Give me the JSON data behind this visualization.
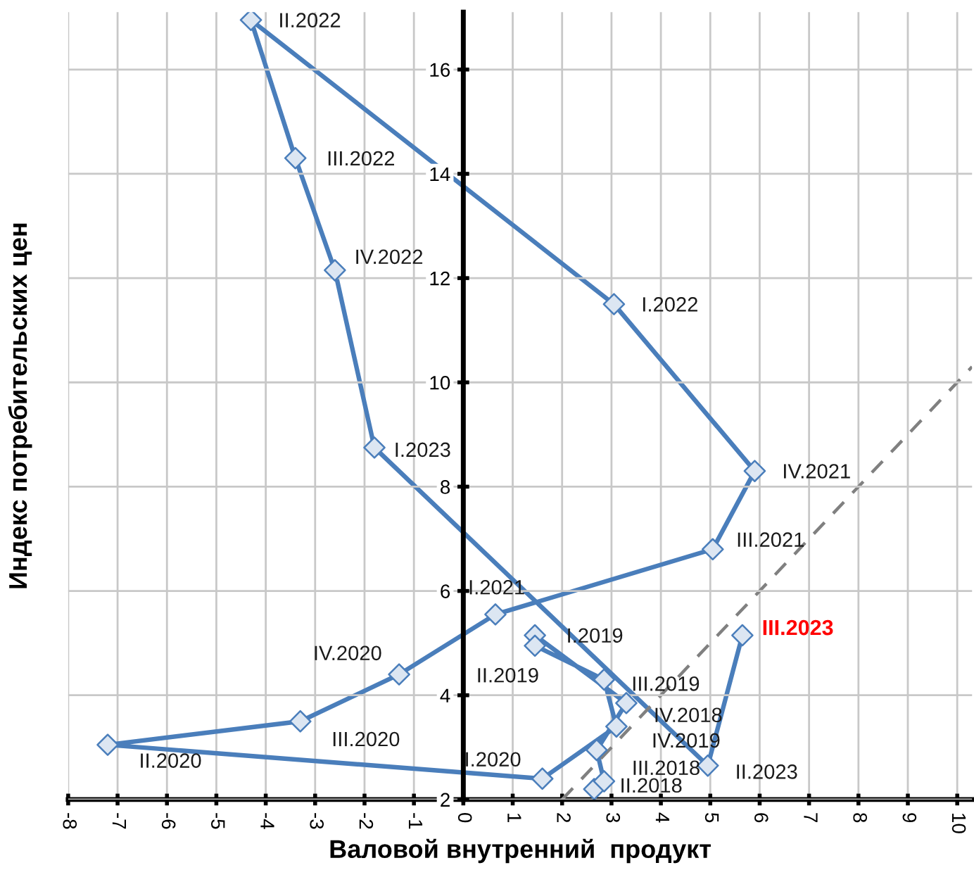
{
  "chart_data": {
    "type": "line",
    "xlabel": "Валовой внутренний  продукт",
    "ylabel": "Индекс потребительских цен",
    "series": [
      {
        "color": "#4a7ebb",
        "marker": "diamond",
        "line_style": "solid",
        "x": [
          2.65,
          2.85,
          2.7,
          3.3,
          1.45,
          1.45,
          2.85,
          3.1,
          1.6,
          -7.2,
          -3.3,
          -1.3,
          0.65,
          5.05,
          5.9,
          3.05,
          -4.3,
          -3.4,
          -2.6,
          -1.8,
          4.95,
          5.65
        ],
        "values": [
          2.2,
          2.35,
          2.95,
          3.85,
          5.15,
          4.95,
          4.3,
          3.4,
          2.4,
          3.05,
          3.5,
          4.4,
          5.55,
          6.8,
          8.3,
          11.5,
          16.95,
          14.3,
          12.15,
          8.75,
          2.65,
          5.15
        ]
      },
      {
        "color": "#808080",
        "marker": "none",
        "line_style": "dashed",
        "x": [
          2,
          10.3
        ],
        "values": [
          2,
          10.3
        ]
      }
    ],
    "annotations": [
      {
        "text": "II.2018",
        "x": 2.85,
        "y": 2.35
      },
      {
        "text": "III.2018",
        "x": 2.7,
        "y": 2.95
      },
      {
        "text": "IV.2018",
        "x": 3.3,
        "y": 3.85
      },
      {
        "text": "I.2019",
        "x": 1.45,
        "y": 5.15
      },
      {
        "text": "II.2019",
        "x": 1.45,
        "y": 4.95
      },
      {
        "text": "III.2019",
        "x": 2.85,
        "y": 4.3
      },
      {
        "text": "IV.2019",
        "x": 3.1,
        "y": 3.4
      },
      {
        "text": "I.2020",
        "x": 1.6,
        "y": 2.4
      },
      {
        "text": "II.2020",
        "x": -7.2,
        "y": 3.05
      },
      {
        "text": "III.2020",
        "x": -3.3,
        "y": 3.5
      },
      {
        "text": "IV.2020",
        "x": -1.3,
        "y": 4.4
      },
      {
        "text": "I.2021",
        "x": 0.65,
        "y": 5.55
      },
      {
        "text": "III.2021",
        "x": 5.05,
        "y": 6.8
      },
      {
        "text": "IV.2021",
        "x": 5.9,
        "y": 8.3
      },
      {
        "text": "I.2022",
        "x": 3.05,
        "y": 11.5
      },
      {
        "text": "II.2022",
        "x": -4.3,
        "y": 16.95
      },
      {
        "text": "III.2022",
        "x": -3.4,
        "y": 14.3
      },
      {
        "text": "IV.2022",
        "x": -2.6,
        "y": 12.15
      },
      {
        "text": "I.2023",
        "x": -1.8,
        "y": 8.75
      },
      {
        "text": "II.2023",
        "x": 4.95,
        "y": 2.65
      },
      {
        "text": "III.2023",
        "x": 5.65,
        "y": 5.15
      }
    ],
    "xlim": [
      -8,
      10.3
    ],
    "ylim": [
      2,
      17.1
    ],
    "xticks": [
      -8,
      -7,
      -6,
      -5,
      -4,
      -3,
      -2,
      -1,
      0,
      1,
      2,
      3,
      4,
      5,
      6,
      7,
      8,
      9,
      10
    ],
    "yticks": [
      2,
      4,
      6,
      8,
      10,
      12,
      14,
      16
    ],
    "grid": true,
    "legend": false
  }
}
